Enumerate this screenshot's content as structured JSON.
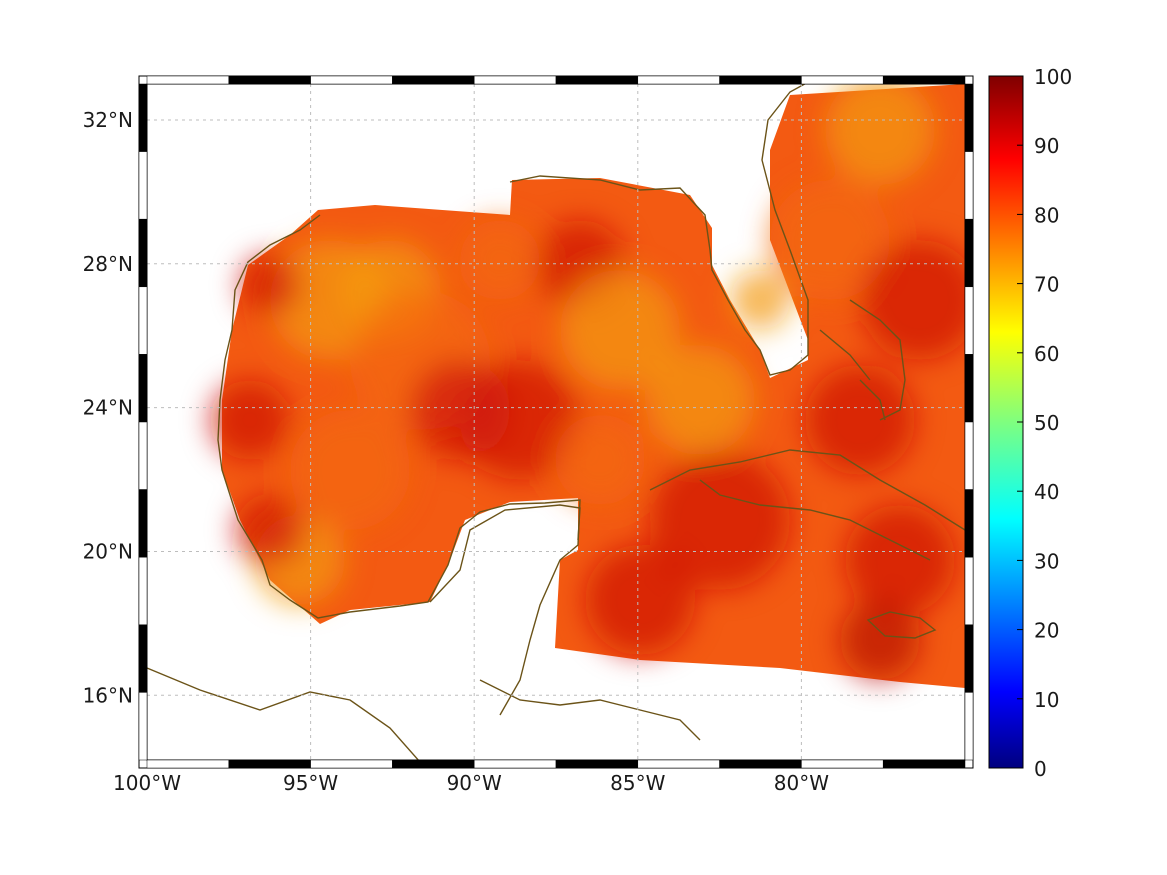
{
  "map": {
    "longitude_labels": [
      "100°W",
      "95°W",
      "90°W",
      "85°W",
      "80°W"
    ],
    "latitude_labels": [
      "32°N",
      "28°N",
      "24°N",
      "20°N",
      "16°N"
    ],
    "lon_range": [
      -100,
      -75
    ],
    "lat_range": [
      14.2,
      33
    ]
  },
  "colorbar": {
    "min": 0,
    "max": 100,
    "tick_labels": [
      "100",
      "90",
      "80",
      "70",
      "60",
      "50",
      "40",
      "30",
      "20",
      "10",
      "0"
    ],
    "colormap": "jet"
  },
  "colors": {
    "coastline": "#6b5318",
    "grid": "#bdbdbd",
    "field_low": "#f39a12",
    "field_mid": "#f35a12",
    "field_high": "#cf1508"
  },
  "field_value_range": [
    72,
    95
  ]
}
